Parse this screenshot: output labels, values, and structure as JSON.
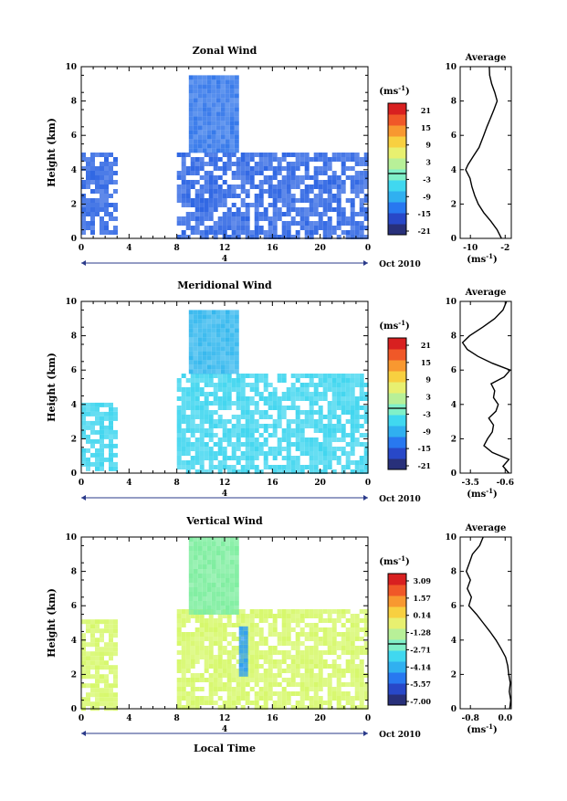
{
  "figure": {
    "xlabel_bottom": "Local Time",
    "date_label": "Oct 2010",
    "day_label": "4",
    "avg_title": "Average"
  },
  "colors": {
    "scale": [
      "#28307a",
      "#2848c8",
      "#2878f0",
      "#30b0f0",
      "#40d8f0",
      "#80f0c8",
      "#b8f098",
      "#e8f070",
      "#f8d040",
      "#f89830",
      "#f05828",
      "#d82020"
    ],
    "zonal_main": "#2f66e3",
    "zonal_upper": "#3578ea",
    "meridional_main": "#42d6ef",
    "meridional_upper": "#35b8ee",
    "vertical_main": "#d6f86a",
    "vertical_upper": "#7feea0",
    "vertical_dip": "#2f9ef0"
  },
  "chart_data": [
    {
      "id": "zonal",
      "type": "heatmap",
      "title": "Zonal Wind",
      "ylabel": "Height (km)",
      "xlim": [
        0,
        24
      ],
      "ylim": [
        0,
        10
      ],
      "x_ticks": [
        "0",
        "4",
        "8",
        "12",
        "16",
        "20",
        "0"
      ],
      "y_ticks": [
        "0",
        "2",
        "4",
        "6",
        "8",
        "10"
      ],
      "colorbar": {
        "unit": "(ms",
        "unit_exp": "-1",
        "unit_close": ")",
        "ticks": [
          "21",
          "15",
          "9",
          "3",
          "-3",
          "-9",
          "-15",
          "-21"
        ]
      },
      "data_regions": [
        {
          "x": [
            0,
            3
          ],
          "y": [
            0.3,
            5.0
          ],
          "tone": "main"
        },
        {
          "x": [
            8,
            24
          ],
          "y": [
            0.1,
            5.0
          ],
          "tone": "main"
        },
        {
          "x": [
            9,
            13
          ],
          "y": [
            5.0,
            9.5
          ],
          "tone": "upper"
        }
      ],
      "average": {
        "xlabel": "(ms",
        "xlabel_exp": "-1",
        "xlabel_close": ")",
        "x_ticks": [
          "-10",
          "-2"
        ],
        "xlim": [
          -13,
          0
        ],
        "ylim": [
          0,
          10
        ],
        "y_ticks": [
          "0",
          "2",
          "4",
          "6",
          "8",
          "10"
        ],
        "profile": [
          {
            "y": 0.0,
            "x": -2.5
          },
          {
            "y": 0.5,
            "x": -3.6
          },
          {
            "y": 1.0,
            "x": -5.2
          },
          {
            "y": 1.5,
            "x": -7.0
          },
          {
            "y": 2.0,
            "x": -8.4
          },
          {
            "y": 2.5,
            "x": -9.3
          },
          {
            "y": 3.0,
            "x": -10.0
          },
          {
            "y": 3.5,
            "x": -10.5
          },
          {
            "y": 4.0,
            "x": -11.6
          },
          {
            "y": 4.3,
            "x": -11.0
          },
          {
            "y": 4.8,
            "x": -9.6
          },
          {
            "y": 5.3,
            "x": -8.2
          },
          {
            "y": 6.0,
            "x": -7.0
          },
          {
            "y": 6.5,
            "x": -6.2
          },
          {
            "y": 7.0,
            "x": -5.3
          },
          {
            "y": 7.5,
            "x": -4.4
          },
          {
            "y": 8.0,
            "x": -3.6
          },
          {
            "y": 8.5,
            "x": -4.2
          },
          {
            "y": 9.0,
            "x": -5.0
          },
          {
            "y": 9.5,
            "x": -5.5
          },
          {
            "y": 10.0,
            "x": -5.6
          }
        ]
      }
    },
    {
      "id": "meridional",
      "type": "heatmap",
      "title": "Meridional Wind",
      "ylabel": "Height (km)",
      "xlim": [
        0,
        24
      ],
      "ylim": [
        0,
        10
      ],
      "x_ticks": [
        "0",
        "4",
        "8",
        "12",
        "16",
        "20",
        "0"
      ],
      "y_ticks": [
        "0",
        "2",
        "4",
        "6",
        "8",
        "10"
      ],
      "colorbar": {
        "unit": "(ms",
        "unit_exp": "-1",
        "unit_close": ")",
        "ticks": [
          "21",
          "15",
          "9",
          "3",
          "-3",
          "-9",
          "-15",
          "-21"
        ]
      },
      "data_regions": [
        {
          "x": [
            0,
            3
          ],
          "y": [
            0.3,
            4.1
          ],
          "tone": "main"
        },
        {
          "x": [
            8,
            24
          ],
          "y": [
            0.1,
            5.8
          ],
          "tone": "main"
        },
        {
          "x": [
            9,
            13
          ],
          "y": [
            5.8,
            9.5
          ],
          "tone": "upper"
        }
      ],
      "average": {
        "xlabel": "(ms",
        "xlabel_exp": "-1",
        "xlabel_close": ")",
        "x_ticks": [
          "-3.5",
          "-0.6"
        ],
        "xlim": [
          -4.3,
          0.0
        ],
        "ylim": [
          0,
          10
        ],
        "y_ticks": [
          "0",
          "2",
          "4",
          "6",
          "8",
          "10"
        ],
        "profile": [
          {
            "y": 0.0,
            "x": -0.2
          },
          {
            "y": 0.4,
            "x": -0.7
          },
          {
            "y": 0.8,
            "x": -0.2
          },
          {
            "y": 1.2,
            "x": -1.6
          },
          {
            "y": 1.6,
            "x": -2.3
          },
          {
            "y": 2.0,
            "x": -2.0
          },
          {
            "y": 2.4,
            "x": -1.6
          },
          {
            "y": 2.8,
            "x": -1.5
          },
          {
            "y": 3.2,
            "x": -1.9
          },
          {
            "y": 3.6,
            "x": -1.3
          },
          {
            "y": 4.0,
            "x": -1.1
          },
          {
            "y": 4.4,
            "x": -1.5
          },
          {
            "y": 4.8,
            "x": -1.4
          },
          {
            "y": 5.2,
            "x": -1.7
          },
          {
            "y": 5.6,
            "x": -0.6
          },
          {
            "y": 6.0,
            "x": -0.1
          },
          {
            "y": 6.4,
            "x": -1.6
          },
          {
            "y": 6.8,
            "x": -2.8
          },
          {
            "y": 7.2,
            "x": -3.7
          },
          {
            "y": 7.6,
            "x": -4.1
          },
          {
            "y": 8.0,
            "x": -3.5
          },
          {
            "y": 8.5,
            "x": -2.4
          },
          {
            "y": 9.0,
            "x": -1.4
          },
          {
            "y": 9.5,
            "x": -0.7
          },
          {
            "y": 10.0,
            "x": -0.4
          }
        ]
      }
    },
    {
      "id": "vertical",
      "type": "heatmap",
      "title": "Vertical Wind",
      "ylabel": "Height (km)",
      "xlabel": "Local Time",
      "xlim": [
        0,
        24
      ],
      "ylim": [
        0,
        10
      ],
      "x_ticks": [
        "0",
        "4",
        "8",
        "12",
        "16",
        "20",
        "0"
      ],
      "y_ticks": [
        "0",
        "2",
        "4",
        "6",
        "8",
        "10"
      ],
      "colorbar": {
        "unit": "(ms",
        "unit_exp": "-1",
        "unit_close": ")",
        "ticks": [
          "3.09",
          "1.57",
          "0.14",
          "-1.28",
          "-2.71",
          "-4.14",
          "-5.57",
          "-7.00"
        ]
      },
      "data_regions": [
        {
          "x": [
            0,
            3
          ],
          "y": [
            0.1,
            5.2
          ],
          "tone": "main"
        },
        {
          "x": [
            8,
            24
          ],
          "y": [
            0.1,
            5.8
          ],
          "tone": "main"
        },
        {
          "x": [
            9,
            13
          ],
          "y": [
            5.5,
            10.0
          ],
          "tone": "upper"
        },
        {
          "x": [
            13.2,
            13.7
          ],
          "y": [
            2.0,
            4.8
          ],
          "tone": "dip"
        }
      ],
      "average": {
        "xlabel": "(ms",
        "xlabel_exp": "-1",
        "xlabel_close": ")",
        "x_ticks": [
          "-0.8",
          "0.0"
        ],
        "xlim": [
          -1.0,
          0.0
        ],
        "ylim": [
          0,
          10
        ],
        "y_ticks": [
          "0",
          "2",
          "4",
          "6",
          "8",
          "10"
        ],
        "profile": [
          {
            "y": 0.0,
            "x": -0.03
          },
          {
            "y": 0.5,
            "x": -0.01
          },
          {
            "y": 1.0,
            "x": -0.04
          },
          {
            "y": 1.5,
            "x": -0.02
          },
          {
            "y": 2.0,
            "x": -0.05
          },
          {
            "y": 2.5,
            "x": -0.07
          },
          {
            "y": 3.0,
            "x": -0.11
          },
          {
            "y": 3.5,
            "x": -0.2
          },
          {
            "y": 4.0,
            "x": -0.3
          },
          {
            "y": 4.5,
            "x": -0.42
          },
          {
            "y": 5.0,
            "x": -0.55
          },
          {
            "y": 5.5,
            "x": -0.68
          },
          {
            "y": 6.0,
            "x": -0.83
          },
          {
            "y": 6.5,
            "x": -0.78
          },
          {
            "y": 7.0,
            "x": -0.86
          },
          {
            "y": 7.5,
            "x": -0.8
          },
          {
            "y": 8.0,
            "x": -0.88
          },
          {
            "y": 8.5,
            "x": -0.82
          },
          {
            "y": 9.0,
            "x": -0.76
          },
          {
            "y": 9.5,
            "x": -0.62
          },
          {
            "y": 10.0,
            "x": -0.55
          }
        ]
      }
    }
  ]
}
